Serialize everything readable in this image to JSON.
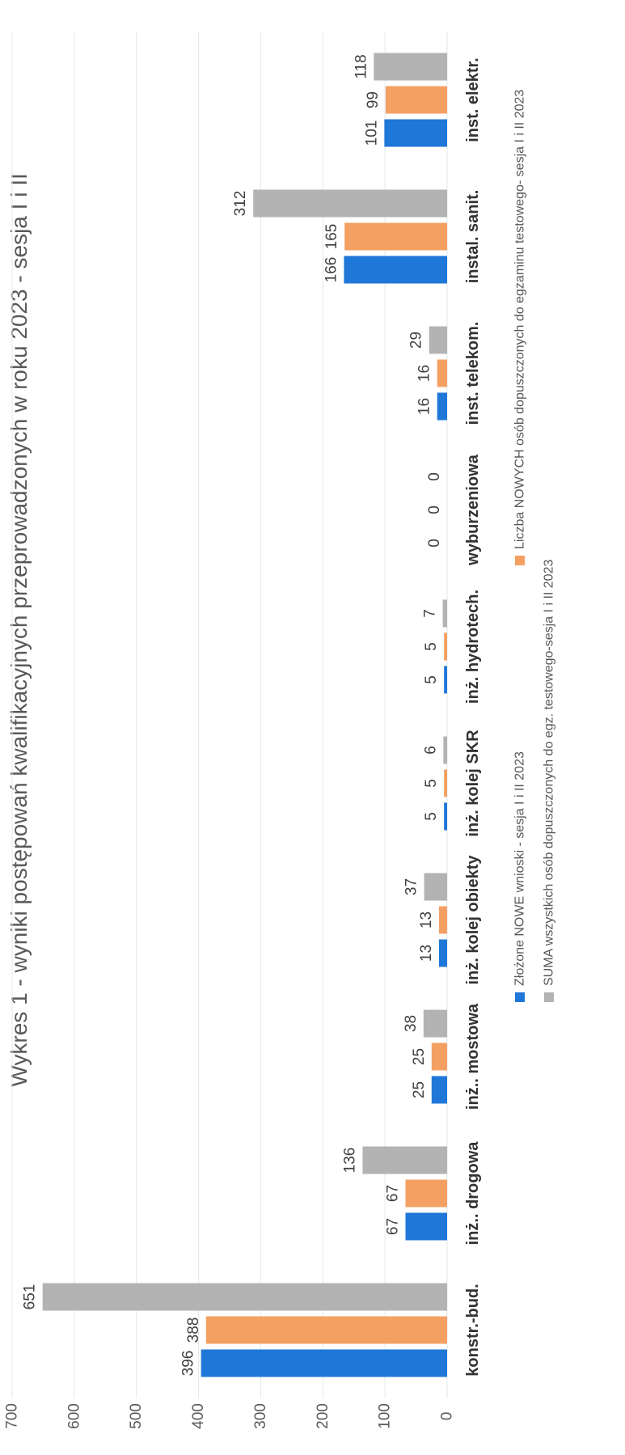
{
  "chart_data": {
    "type": "bar",
    "title": "Wykres 1 - wyniki postępowań kwalifikacyjnych przeprowadzonych w roku 2023 - sesja I i II",
    "categories": [
      "konstr.-bud.",
      "inż.. drogowa",
      "inż.. mostowa",
      "inż. kolej obiekty",
      "inż. kolej SKR",
      "inż. hydrotech.",
      "wyburzeniowa",
      "inst. telekom.",
      "instal. sanit.",
      "inst. elektr."
    ],
    "series": [
      {
        "name": "Złożone NOWE wnioski - sesja I i II 2023",
        "color": "#1f77d8",
        "values": [
          396,
          67,
          25,
          13,
          5,
          5,
          0,
          16,
          166,
          101
        ]
      },
      {
        "name": "Liczba NOWYCH osób dopuszczonych do egzaminu testowego- sesja I i II 2023",
        "color": "#f4a062",
        "values": [
          388,
          67,
          25,
          13,
          5,
          5,
          0,
          16,
          165,
          99
        ]
      },
      {
        "name": "SUMA wszystkich osób dopuszczonych do egz. testowego-sesja  I i II 2023",
        "color": "#b3b3b3",
        "values": [
          651,
          136,
          38,
          37,
          6,
          7,
          0,
          29,
          312,
          118
        ]
      }
    ],
    "ylim": [
      0,
      700
    ],
    "ticks": [
      0,
      100,
      200,
      300,
      400,
      500,
      600,
      700
    ],
    "xlabel": "",
    "ylabel": "",
    "grid": true,
    "legend_position": "bottom"
  }
}
